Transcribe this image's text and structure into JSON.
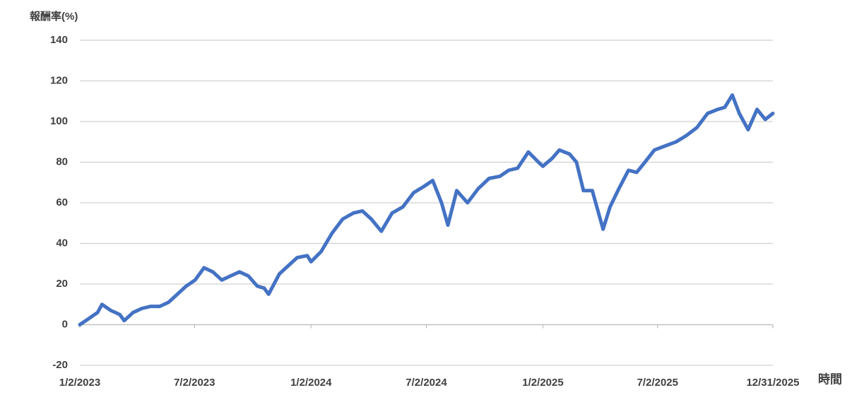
{
  "chart_data": {
    "type": "line",
    "y_label": "報酬率(%)",
    "x_label": "時間",
    "x": [
      "2023-01-02",
      "2023-01-16",
      "2023-01-30",
      "2023-02-06",
      "2023-02-20",
      "2023-03-06",
      "2023-03-13",
      "2023-03-27",
      "2023-04-10",
      "2023-04-24",
      "2023-05-08",
      "2023-05-22",
      "2023-06-05",
      "2023-06-19",
      "2023-07-03",
      "2023-07-17",
      "2023-07-31",
      "2023-08-14",
      "2023-08-28",
      "2023-09-11",
      "2023-09-25",
      "2023-10-09",
      "2023-10-20",
      "2023-10-27",
      "2023-11-13",
      "2023-11-27",
      "2023-12-11",
      "2023-12-27",
      "2024-01-02",
      "2024-01-18",
      "2024-02-04",
      "2024-02-21",
      "2024-03-09",
      "2024-03-23",
      "2024-04-06",
      "2024-04-22",
      "2024-05-09",
      "2024-05-26",
      "2024-06-12",
      "2024-06-28",
      "2024-07-12",
      "2024-07-26",
      "2024-08-05",
      "2024-08-19",
      "2024-09-05",
      "2024-09-22",
      "2024-10-09",
      "2024-10-26",
      "2024-11-09",
      "2024-11-23",
      "2024-12-10",
      "2024-12-26",
      "2025-01-02",
      "2025-01-17",
      "2025-01-28",
      "2025-02-13",
      "2025-02-24",
      "2025-03-07",
      "2025-03-21",
      "2025-04-07",
      "2025-04-18",
      "2025-05-02",
      "2025-05-17",
      "2025-05-30",
      "2025-06-12",
      "2025-06-27",
      "2025-07-14",
      "2025-07-31",
      "2025-08-16",
      "2025-09-02",
      "2025-09-19",
      "2025-10-05",
      "2025-10-16",
      "2025-10-28",
      "2025-11-08",
      "2025-11-22",
      "2025-12-06",
      "2025-12-19",
      "2025-12-31"
    ],
    "series": [
      {
        "name": "報酬率",
        "color": "#4472c4",
        "values": [
          0,
          3,
          6,
          10,
          7,
          5,
          2,
          6,
          8,
          9,
          9,
          11,
          15,
          19,
          22,
          28,
          26,
          22,
          24,
          26,
          24,
          19,
          18,
          15,
          25,
          29,
          33,
          34,
          31,
          36,
          45,
          52,
          55,
          56,
          52,
          46,
          55,
          58,
          65,
          68,
          71,
          60,
          49,
          66,
          60,
          67,
          72,
          73,
          76,
          77,
          85,
          80,
          78,
          82,
          86,
          84,
          80,
          66,
          66,
          47,
          58,
          67,
          76,
          75,
          80,
          86,
          88,
          90,
          93,
          97,
          104,
          106,
          107,
          113,
          104,
          96,
          106,
          101,
          104
        ]
      }
    ],
    "xlim": [
      "2023-01-02",
      "2025-12-31"
    ],
    "xticks": [
      {
        "value": "2023-01-02",
        "label": "1/2/2023"
      },
      {
        "value": "2023-07-02",
        "label": "7/2/2023"
      },
      {
        "value": "2024-01-02",
        "label": "1/2/2024"
      },
      {
        "value": "2024-07-02",
        "label": "7/2/2024"
      },
      {
        "value": "2025-01-02",
        "label": "1/2/2025"
      },
      {
        "value": "2025-07-02",
        "label": "7/2/2025"
      },
      {
        "value": "2025-12-31",
        "label": "12/31/2025"
      }
    ],
    "ylim": [
      -20,
      140
    ],
    "yticks": [
      -20,
      0,
      20,
      40,
      60,
      80,
      100,
      120,
      140
    ],
    "grid": true
  }
}
